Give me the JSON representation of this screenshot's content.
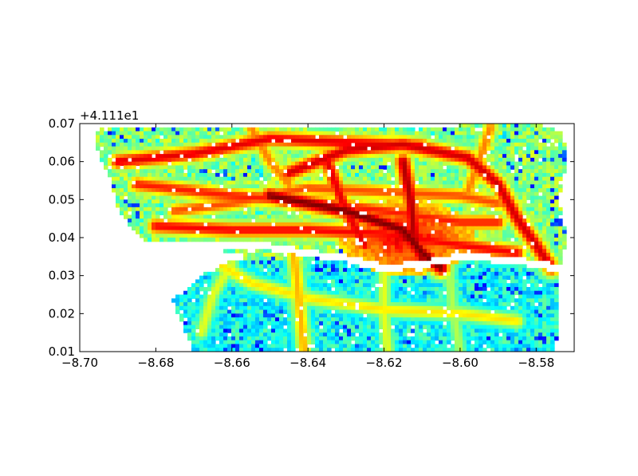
{
  "chart_data": {
    "type": "heatmap",
    "title": "",
    "xlabel": "",
    "ylabel": "",
    "y_offset_label": "+4.111e1",
    "xlim": [
      -8.7,
      -8.57
    ],
    "ylim": [
      0.01,
      0.07
    ],
    "xticks": [
      {
        "value": -8.7,
        "label": "−8.70"
      },
      {
        "value": -8.68,
        "label": "−8.68"
      },
      {
        "value": -8.66,
        "label": "−8.66"
      },
      {
        "value": -8.64,
        "label": "−8.64"
      },
      {
        "value": -8.62,
        "label": "−8.62"
      },
      {
        "value": -8.6,
        "label": "−8.60"
      },
      {
        "value": -8.58,
        "label": "−8.58"
      }
    ],
    "yticks": [
      {
        "value": 0.01,
        "label": "0.01"
      },
      {
        "value": 0.02,
        "label": "0.02"
      },
      {
        "value": 0.03,
        "label": "0.03"
      },
      {
        "value": 0.04,
        "label": "0.04"
      },
      {
        "value": 0.05,
        "label": "0.05"
      },
      {
        "value": 0.06,
        "label": "0.06"
      },
      {
        "value": 0.07,
        "label": "0.07"
      }
    ],
    "colormap": "jet",
    "grid": false,
    "legend": "none",
    "region_outline": [
      [
        -8.695,
        0.069
      ],
      [
        -8.675,
        0.069
      ],
      [
        -8.665,
        0.0695
      ],
      [
        -8.64,
        0.069
      ],
      [
        -8.62,
        0.0695
      ],
      [
        -8.6,
        0.0695
      ],
      [
        -8.58,
        0.07
      ],
      [
        -8.573,
        0.068
      ],
      [
        -8.572,
        0.06
      ],
      [
        -8.574,
        0.05
      ],
      [
        -8.572,
        0.04
      ],
      [
        -8.574,
        0.03
      ],
      [
        -8.574,
        0.02
      ],
      [
        -8.575,
        0.01
      ],
      [
        -8.67,
        0.01
      ],
      [
        -8.673,
        0.017
      ],
      [
        -8.676,
        0.024
      ],
      [
        -8.672,
        0.026
      ],
      [
        -8.668,
        0.03
      ],
      [
        -8.66,
        0.034
      ],
      [
        -8.655,
        0.035
      ],
      [
        -8.665,
        0.037
      ],
      [
        -8.682,
        0.038
      ],
      [
        -8.686,
        0.042
      ],
      [
        -8.69,
        0.048
      ],
      [
        -8.692,
        0.056
      ],
      [
        -8.696,
        0.064
      ]
    ],
    "river_line": [
      [
        -8.685,
        0.0385
      ],
      [
        -8.67,
        0.038
      ],
      [
        -8.65,
        0.0375
      ],
      [
        -8.63,
        0.0345
      ],
      [
        -8.62,
        0.032
      ],
      [
        -8.61,
        0.033
      ],
      [
        -8.6,
        0.035
      ],
      [
        -8.585,
        0.034
      ],
      [
        -8.574,
        0.032
      ]
    ],
    "roads": [
      {
        "intensity": 0.9,
        "path": [
          [
            -8.69,
            0.06
          ],
          [
            -8.67,
            0.062
          ],
          [
            -8.65,
            0.066
          ],
          [
            -8.63,
            0.065
          ],
          [
            -8.61,
            0.064
          ]
        ]
      },
      {
        "intensity": 0.92,
        "path": [
          [
            -8.645,
            0.057
          ],
          [
            -8.63,
            0.063
          ],
          [
            -8.615,
            0.0645
          ],
          [
            -8.598,
            0.061
          ],
          [
            -8.59,
            0.054
          ],
          [
            -8.585,
            0.045
          ],
          [
            -8.58,
            0.038
          ],
          [
            -8.576,
            0.032
          ]
        ]
      },
      {
        "intensity": 0.85,
        "path": [
          [
            -8.685,
            0.054
          ],
          [
            -8.66,
            0.051
          ],
          [
            -8.64,
            0.0495
          ],
          [
            -8.62,
            0.047
          ],
          [
            -8.6,
            0.044
          ],
          [
            -8.59,
            0.044
          ]
        ]
      },
      {
        "intensity": 0.88,
        "path": [
          [
            -8.68,
            0.043
          ],
          [
            -8.66,
            0.042
          ],
          [
            -8.64,
            0.042
          ],
          [
            -8.62,
            0.041
          ],
          [
            -8.6,
            0.038
          ],
          [
            -8.585,
            0.036
          ]
        ]
      },
      {
        "intensity": 1.0,
        "path": [
          [
            -8.65,
            0.051
          ],
          [
            -8.63,
            0.047
          ],
          [
            -8.615,
            0.042
          ],
          [
            -8.61,
            0.036
          ],
          [
            -8.605,
            0.032
          ]
        ]
      },
      {
        "intensity": 0.95,
        "path": [
          [
            -8.615,
            0.06
          ],
          [
            -8.613,
            0.05
          ],
          [
            -8.612,
            0.04
          ],
          [
            -8.61,
            0.034
          ]
        ]
      },
      {
        "intensity": 0.9,
        "path": [
          [
            -8.635,
            0.06
          ],
          [
            -8.63,
            0.047
          ],
          [
            -8.625,
            0.038
          ]
        ]
      },
      {
        "intensity": 0.8,
        "path": [
          [
            -8.675,
            0.047
          ],
          [
            -8.66,
            0.049
          ],
          [
            -8.65,
            0.051
          ],
          [
            -8.64,
            0.053
          ],
          [
            -8.62,
            0.052
          ],
          [
            -8.6,
            0.051
          ],
          [
            -8.59,
            0.049
          ]
        ]
      },
      {
        "intensity": 0.7,
        "path": [
          [
            -8.644,
            0.037
          ],
          [
            -8.643,
            0.03
          ],
          [
            -8.642,
            0.02
          ],
          [
            -8.641,
            0.01
          ]
        ]
      },
      {
        "intensity": 0.65,
        "path": [
          [
            -8.665,
            0.034
          ],
          [
            -8.655,
            0.028
          ],
          [
            -8.64,
            0.024
          ],
          [
            -8.62,
            0.021
          ],
          [
            -8.6,
            0.02
          ],
          [
            -8.585,
            0.018
          ]
        ]
      },
      {
        "intensity": 0.6,
        "path": [
          [
            -8.62,
            0.031
          ],
          [
            -8.62,
            0.02
          ],
          [
            -8.619,
            0.01
          ]
        ]
      },
      {
        "intensity": 0.55,
        "path": [
          [
            -8.603,
            0.033
          ],
          [
            -8.602,
            0.022
          ],
          [
            -8.6,
            0.01
          ]
        ]
      },
      {
        "intensity": 0.6,
        "path": [
          [
            -8.66,
            0.033
          ],
          [
            -8.665,
            0.025
          ],
          [
            -8.668,
            0.015
          ]
        ]
      },
      {
        "intensity": 0.75,
        "path": [
          [
            -8.655,
            0.069
          ],
          [
            -8.65,
            0.06
          ],
          [
            -8.645,
            0.054
          ]
        ]
      },
      {
        "intensity": 0.75,
        "path": [
          [
            -8.592,
            0.069
          ],
          [
            -8.595,
            0.06
          ],
          [
            -8.598,
            0.052
          ]
        ]
      }
    ]
  }
}
